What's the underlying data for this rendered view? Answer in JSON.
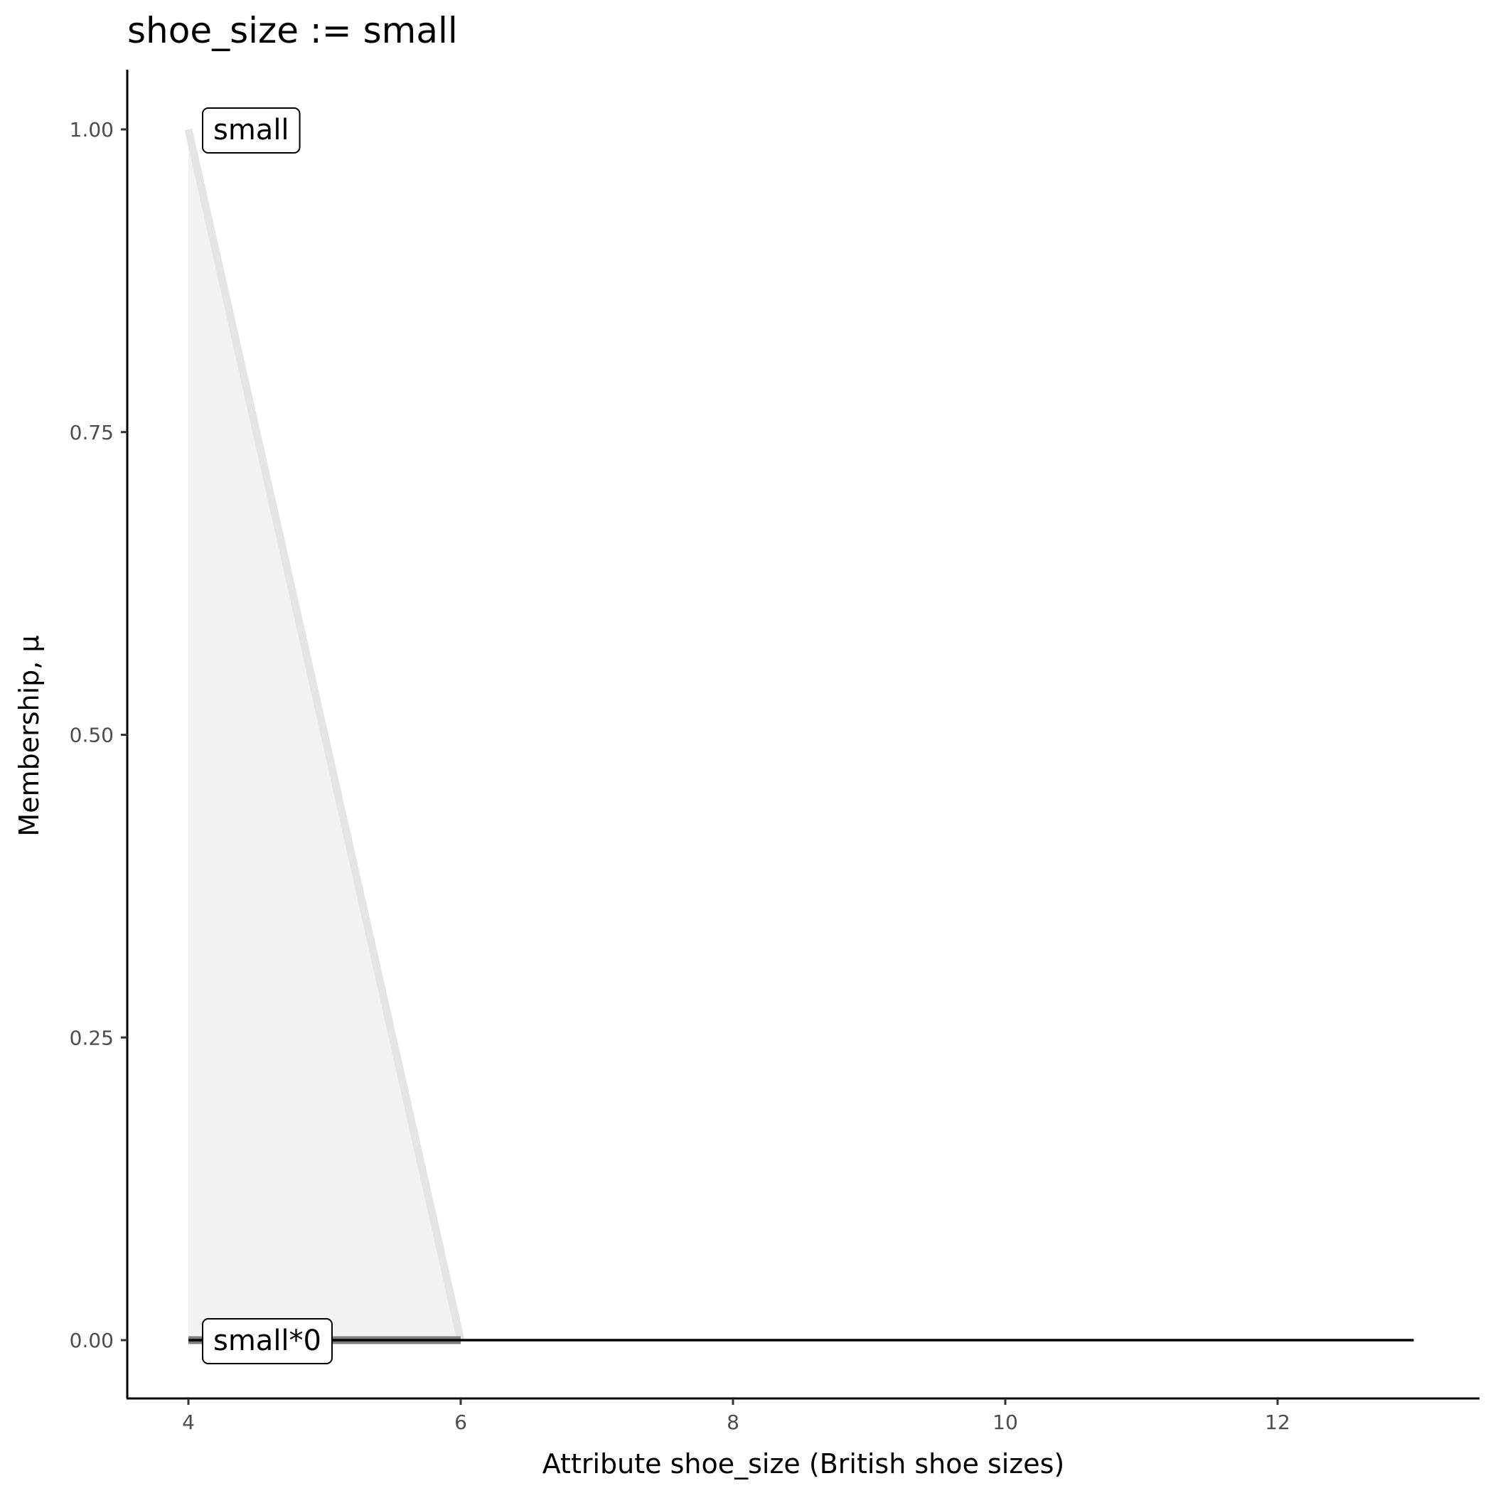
{
  "chart_data": {
    "type": "area",
    "title": "shoe_size := small",
    "xlabel": "Attribute shoe_size (British shoe sizes)",
    "ylabel": "Membership, μ",
    "xlim": [
      3.55,
      13.45
    ],
    "ylim": [
      -0.045,
      1.05
    ],
    "x_ticks": [
      4,
      6,
      8,
      10,
      12
    ],
    "x_tick_labels": [
      "4",
      "6",
      "8",
      "10",
      "12"
    ],
    "y_ticks": [
      0,
      0.25,
      0.5,
      0.75,
      1
    ],
    "y_tick_labels": [
      "0.00",
      "0.25",
      "0.50",
      "0.75",
      "1.00"
    ],
    "grid": false,
    "series": [
      {
        "name": "small",
        "x": [
          4,
          6
        ],
        "y": [
          1,
          0
        ],
        "color": "#e5e5e5",
        "fill": "#f2f2f2"
      },
      {
        "name": "small*0",
        "x": [
          4,
          6
        ],
        "y": [
          0,
          0
        ],
        "color": "#808080"
      },
      {
        "x": [
          4,
          13
        ],
        "y": [
          0,
          0
        ],
        "color": "#000000"
      }
    ],
    "annotations": [
      {
        "text": "small",
        "x": 4,
        "y": 1
      },
      {
        "text": "small*0",
        "x": 4,
        "y": 0
      }
    ]
  }
}
